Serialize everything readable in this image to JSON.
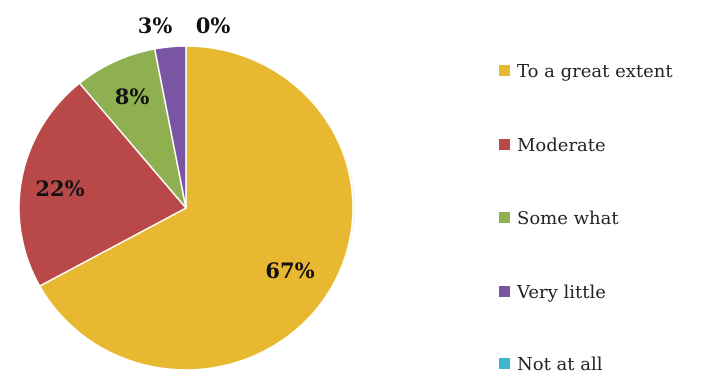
{
  "chart_data": {
    "type": "pie",
    "categories": [
      "To a great extent",
      "Moderate",
      "Some what",
      "Very little",
      "Not at all"
    ],
    "values": [
      67,
      22,
      8,
      3,
      0
    ],
    "labels": [
      "67%",
      "22%",
      "8%",
      "3%",
      "0%"
    ],
    "colors": [
      "#e8b830",
      "#b94848",
      "#8fb050",
      "#7a55a3",
      "#3fb5d0"
    ],
    "legend_position": "right"
  }
}
